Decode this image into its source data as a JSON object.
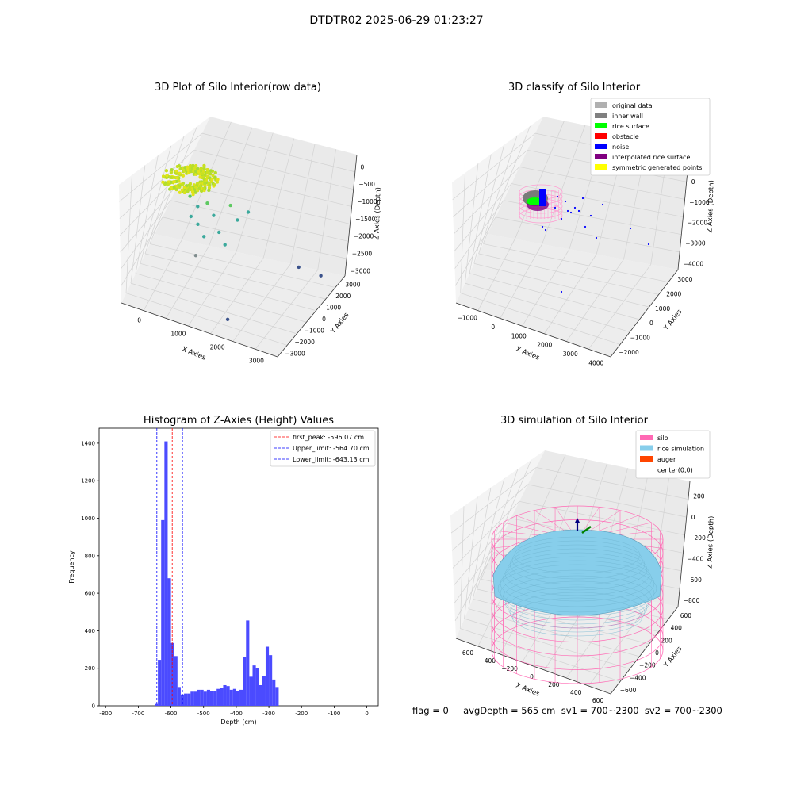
{
  "figure": {
    "title": "DTDTR02 2025-06-29 01:23:27",
    "footer": "flag = 0     avgDepth = 565 cm  sv1 = 700~2300  sv2 = 700~2300"
  },
  "chart_data": [
    {
      "type": "scatter",
      "title": "3D Plot of Silo Interior(row data)",
      "xlabel": "X Axies",
      "ylabel": "Y Axies",
      "zlabel": "Z Axies (Depth)",
      "x_ticks": [
        "0",
        "1000",
        "2000",
        "3000"
      ],
      "y_ticks": [
        "−3000",
        "−2000",
        "−1000",
        "0",
        "1000",
        "2000",
        "3000"
      ],
      "z_ticks": [
        "0",
        "−500",
        "−1000",
        "−1500",
        "−2000",
        "−2500",
        "−3000"
      ],
      "colormap": "viridis-like (yellow-green near surface, blue at depth)",
      "cluster": {
        "x_center": -100,
        "y_center": 0,
        "z_center": -500,
        "note": "dense ring of points near surface"
      },
      "points": [
        {
          "x": 600,
          "y": 400,
          "z": -900
        },
        {
          "x": 800,
          "y": 300,
          "z": -1100
        },
        {
          "x": 1000,
          "y": 500,
          "z": -1000
        },
        {
          "x": 1200,
          "y": 200,
          "z": -1200
        },
        {
          "x": 1500,
          "y": 800,
          "z": -1000
        },
        {
          "x": 700,
          "y": -100,
          "z": -1300
        },
        {
          "x": 900,
          "y": -300,
          "z": -1400
        },
        {
          "x": 1400,
          "y": -200,
          "z": -1500
        },
        {
          "x": 1700,
          "y": 600,
          "z": -1300
        },
        {
          "x": 1900,
          "y": 900,
          "z": -1100
        },
        {
          "x": 1100,
          "y": -600,
          "z": -1600
        },
        {
          "x": 1600,
          "y": -500,
          "z": -1700
        },
        {
          "x": 1000,
          "y": -1200,
          "z": -2000
        },
        {
          "x": 2900,
          "y": 1800,
          "z": -2700
        },
        {
          "x": 3300,
          "y": 2300,
          "z": -3000
        },
        {
          "x": 2000,
          "y": -2200,
          "z": -3200
        }
      ]
    },
    {
      "type": "scatter",
      "title": "3D classify of Silo Interior",
      "xlabel": "X Axies",
      "ylabel": "Y Axies",
      "zlabel": "Z Axies (Depth)",
      "x_ticks": [
        "−1000",
        "0",
        "1000",
        "2000",
        "3000",
        "4000"
      ],
      "y_ticks": [
        "−2000",
        "−1000",
        "0",
        "1000",
        "2000",
        "3000"
      ],
      "z_ticks": [
        "1000",
        "0",
        "−1000",
        "−2000",
        "−3000",
        "−4000"
      ],
      "legend": [
        {
          "label": "original data",
          "color": "#b0b0b0"
        },
        {
          "label": "inner wall",
          "color": "#808080"
        },
        {
          "label": "rice surface",
          "color": "#00ff00"
        },
        {
          "label": "obstacle",
          "color": "#ff0000"
        },
        {
          "label": "noise",
          "color": "#0000ff"
        },
        {
          "label": "interpolated rice surface",
          "color": "#800080"
        },
        {
          "label": "symmetric generated points",
          "color": "#ffff00"
        }
      ],
      "legend_placement": "upper-right"
    },
    {
      "type": "bar",
      "title": "Histogram of Z-Axies (Height) Values",
      "xlabel": "Depth (cm)",
      "ylabel": "Frequency",
      "xlim": [
        -820,
        35
      ],
      "ylim": [
        0,
        1480
      ],
      "x_ticks": [
        -800,
        -700,
        -600,
        -500,
        -400,
        -300,
        -200,
        -100,
        0
      ],
      "y_ticks": [
        0,
        200,
        400,
        600,
        800,
        1000,
        1200,
        1400
      ],
      "bin_width": 10,
      "bins": [
        {
          "x": -650,
          "v": 10
        },
        {
          "x": -640,
          "v": 245
        },
        {
          "x": -630,
          "v": 990
        },
        {
          "x": -620,
          "v": 1410
        },
        {
          "x": -610,
          "v": 680
        },
        {
          "x": -600,
          "v": 335
        },
        {
          "x": -590,
          "v": 265
        },
        {
          "x": -580,
          "v": 100
        },
        {
          "x": -570,
          "v": 60
        },
        {
          "x": -560,
          "v": 65
        },
        {
          "x": -550,
          "v": 65
        },
        {
          "x": -540,
          "v": 75
        },
        {
          "x": -530,
          "v": 75
        },
        {
          "x": -520,
          "v": 85
        },
        {
          "x": -510,
          "v": 85
        },
        {
          "x": -500,
          "v": 75
        },
        {
          "x": -490,
          "v": 85
        },
        {
          "x": -480,
          "v": 80
        },
        {
          "x": -470,
          "v": 80
        },
        {
          "x": -460,
          "v": 90
        },
        {
          "x": -450,
          "v": 95
        },
        {
          "x": -440,
          "v": 110
        },
        {
          "x": -430,
          "v": 105
        },
        {
          "x": -420,
          "v": 85
        },
        {
          "x": -410,
          "v": 90
        },
        {
          "x": -400,
          "v": 80
        },
        {
          "x": -390,
          "v": 85
        },
        {
          "x": -380,
          "v": 260
        },
        {
          "x": -370,
          "v": 455
        },
        {
          "x": -360,
          "v": 155
        },
        {
          "x": -350,
          "v": 215
        },
        {
          "x": -340,
          "v": 200
        },
        {
          "x": -330,
          "v": 110
        },
        {
          "x": -320,
          "v": 160
        },
        {
          "x": -310,
          "v": 315
        },
        {
          "x": -300,
          "v": 270
        },
        {
          "x": -290,
          "v": 140
        },
        {
          "x": -280,
          "v": 100
        }
      ],
      "vlines": [
        {
          "label": "first_peak: -596.07 cm",
          "x": -596.07,
          "color": "#ff0000"
        },
        {
          "label": "Upper_limit: -564.70 cm",
          "x": -564.7,
          "color": "#0000ff"
        },
        {
          "label": "Lower_limit: -643.13 cm",
          "x": -643.13,
          "color": "#0000ff"
        }
      ],
      "bar_color": "#4b4bff",
      "legend_placement": "upper-right"
    },
    {
      "type": "surface",
      "title": "3D simulation of Silo Interior",
      "xlabel": "X Axies",
      "ylabel": "Y Axies",
      "zlabel": "Z Axies (Depth)",
      "x_ticks": [
        "−600",
        "−400",
        "−200",
        "0",
        "200",
        "400",
        "600"
      ],
      "y_ticks": [
        "−600",
        "−400",
        "−200",
        "0",
        "200",
        "400",
        "600"
      ],
      "z_ticks": [
        "200",
        "0",
        "−200",
        "−400",
        "−600",
        "−800"
      ],
      "legend": [
        {
          "label": "silo",
          "color": "#ff69b4"
        },
        {
          "label": "rice simulation",
          "color": "#87ceeb"
        },
        {
          "label": "auger",
          "color": "#ff4500"
        },
        {
          "label": "center(0,0)",
          "color": "#ffffff"
        }
      ],
      "legend_placement": "upper-right"
    }
  ]
}
